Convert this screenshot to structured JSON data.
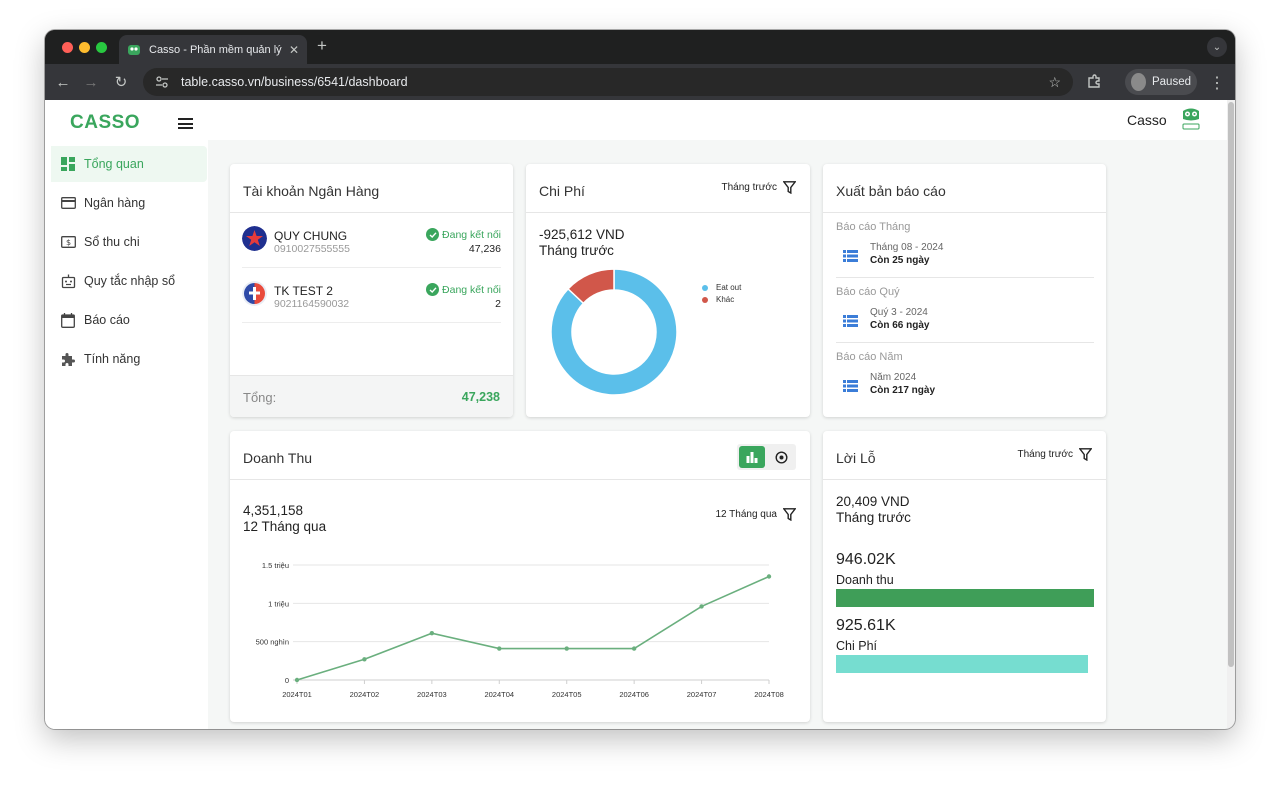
{
  "browser": {
    "tab_title": "Casso - Phần mềm quản lý d",
    "url": "table.casso.vn/business/6541/dashboard",
    "profile_label": "Paused"
  },
  "app": {
    "logo": "CASSO",
    "user_name": "Casso"
  },
  "sidebar": {
    "items": [
      {
        "label": "Tổng quan",
        "icon": "dashboard-icon",
        "active": true
      },
      {
        "label": "Ngân hàng",
        "icon": "credit-card-icon",
        "active": false
      },
      {
        "label": "Sổ thu chi",
        "icon": "money-icon",
        "active": false
      },
      {
        "label": "Quy tắc nhập sổ",
        "icon": "robot-icon",
        "active": false
      },
      {
        "label": "Báo cáo",
        "icon": "calendar-icon",
        "active": false
      },
      {
        "label": "Tính năng",
        "icon": "puzzle-icon",
        "active": false
      }
    ]
  },
  "bank_card": {
    "title": "Tài khoản Ngân Hàng",
    "accounts": [
      {
        "name": "QUY CHUNG",
        "number": "0910027555555",
        "status": "Đang kết nối",
        "count": "47,236"
      },
      {
        "name": "TK TEST 2",
        "number": "9021164590032",
        "status": "Đang kết nối",
        "count": "2"
      }
    ],
    "total_label": "Tổng:",
    "total_value": "47,238"
  },
  "expense_card": {
    "title": "Chi Phí",
    "filter_label": "Tháng trước",
    "amount": "-925,612 VND",
    "period": "Tháng trước"
  },
  "report_card": {
    "title": "Xuất bản báo cáo",
    "groups": [
      {
        "label": "Báo cáo Tháng",
        "item": "Tháng 08 - 2024",
        "remaining": "Còn 25 ngày"
      },
      {
        "label": "Báo cáo Quý",
        "item": "Quý 3 - 2024",
        "remaining": "Còn 66 ngày"
      },
      {
        "label": "Báo cáo Năm",
        "item": "Năm 2024",
        "remaining": "Còn 217 ngày"
      }
    ]
  },
  "revenue_card": {
    "title": "Doanh Thu",
    "amount": "4,351,158",
    "period": "12 Tháng qua",
    "filter_label": "12 Tháng qua"
  },
  "pl_card": {
    "title": "Lời Lỗ",
    "filter_label": "Tháng trước",
    "amount": "20,409 VND",
    "period": "Tháng trước",
    "revenue_value": "946.02K",
    "revenue_label": "Doanh thu",
    "expense_value": "925.61K",
    "expense_label": "Chi Phí",
    "revenue_fraction": 1.0,
    "expense_fraction": 0.978,
    "revenue_color": "#3f9e58",
    "expense_color": "#76ddd0"
  },
  "chart_data": [
    {
      "type": "pie",
      "labels": [
        "Eat out",
        "Khác"
      ],
      "values": [
        87,
        13
      ],
      "colors": [
        "#5bbfea",
        "#d1574a"
      ],
      "legend": "right"
    },
    {
      "type": "line",
      "categories": [
        "2024T01",
        "2024T02",
        "2024T03",
        "2024T04",
        "2024T05",
        "2024T06",
        "2024T07",
        "2024T08"
      ],
      "values": [
        0,
        270000,
        610000,
        410000,
        410000,
        410000,
        960000,
        1350000
      ],
      "ytick_values": [
        0,
        500000,
        1000000,
        1500000
      ],
      "ytick_labels": [
        "0",
        "500 nghìn",
        "1 triệu",
        "1.5 triệu"
      ],
      "ylim": [
        0,
        1500000
      ],
      "color": "#6aaf7e",
      "grid": true
    }
  ]
}
